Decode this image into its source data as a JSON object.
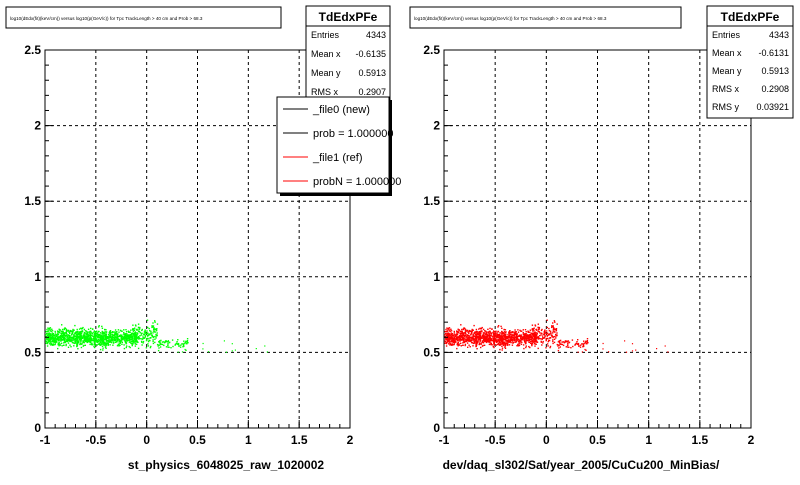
{
  "charts": [
    {
      "title": "log10(dEdx(fit)(keV/cm)) versus log10(p(GeV/c)) for Tpc TrackLength > 40 cm and Prob > 68.3",
      "xlabel": "st_physics_6048025_raw_1020002",
      "stats": {
        "name": "TdEdxPFe",
        "rows": [
          {
            "label": "Entries",
            "value": "4343"
          },
          {
            "label": "Mean x",
            "value": "-0.6135"
          },
          {
            "label": "Mean y",
            "value": "0.5913"
          },
          {
            "label": "RMS x",
            "value": "0.2907"
          }
        ]
      },
      "legend": [
        {
          "label": "_file0 (new)",
          "color": "#000000"
        },
        {
          "label": "prob = 1.000000",
          "color": "#000000"
        },
        {
          "label": "_file1 (ref)",
          "color": "#ff0000"
        },
        {
          "label": "probN = 1.000000",
          "color": "#ff0000"
        }
      ]
    },
    {
      "title": "log10(dEdx(fit)(keV/cm)) versus log10(p(GeV/c)) for Tpc TrackLength > 40 cm and Prob > 68.3",
      "xlabel": "dev/daq_sl302/Sat/year_2005/CuCu200_MinBias/",
      "stats": {
        "name": "TdEdxPFe",
        "rows": [
          {
            "label": "Entries",
            "value": "4343"
          },
          {
            "label": "Mean x",
            "value": "-0.6131"
          },
          {
            "label": "Mean y",
            "value": "0.5913"
          },
          {
            "label": "RMS x",
            "value": "0.2908"
          },
          {
            "label": "RMS y",
            "value": "0.03921"
          }
        ]
      }
    }
  ],
  "chart_data": [
    {
      "type": "scatter",
      "xlim": [
        -1,
        2
      ],
      "ylim": [
        0,
        2.5
      ],
      "xticks": [
        "-1",
        "-0.5",
        "0",
        "0.5",
        "1",
        "1.5",
        "2"
      ],
      "yticks": [
        "0",
        "0.5",
        "1",
        "1.5",
        "2",
        "2.5"
      ],
      "grid": true,
      "marker_color": "#00ff00",
      "point_count": 4343,
      "clusters": [
        {
          "x_range": [
            -1.0,
            -0.4
          ],
          "y_center": 0.6,
          "y_spread": 0.05
        },
        {
          "x_range": [
            -0.45,
            -0.1
          ],
          "y_center": 0.6,
          "y_spread": 0.04
        },
        {
          "x_range": [
            -0.15,
            0.1
          ],
          "y_center": 0.62,
          "y_spread": 0.06
        },
        {
          "x_range": [
            0.1,
            0.4
          ],
          "y_center": 0.56,
          "y_spread": 0.03
        }
      ]
    },
    {
      "type": "scatter",
      "xlim": [
        -1,
        2
      ],
      "ylim": [
        0,
        2.5
      ],
      "xticks": [
        "-1",
        "-0.5",
        "0",
        "0.5",
        "1",
        "1.5",
        "2"
      ],
      "yticks": [
        "0",
        "0.5",
        "1",
        "1.5",
        "2",
        "2.5"
      ],
      "grid": true,
      "marker_color": "#ff0000",
      "point_count": 4343,
      "clusters": [
        {
          "x_range": [
            -1.0,
            -0.4
          ],
          "y_center": 0.6,
          "y_spread": 0.05
        },
        {
          "x_range": [
            -0.45,
            -0.1
          ],
          "y_center": 0.6,
          "y_spread": 0.04
        },
        {
          "x_range": [
            -0.15,
            0.1
          ],
          "y_center": 0.62,
          "y_spread": 0.06
        },
        {
          "x_range": [
            0.1,
            0.4
          ],
          "y_center": 0.56,
          "y_spread": 0.03
        }
      ]
    }
  ]
}
